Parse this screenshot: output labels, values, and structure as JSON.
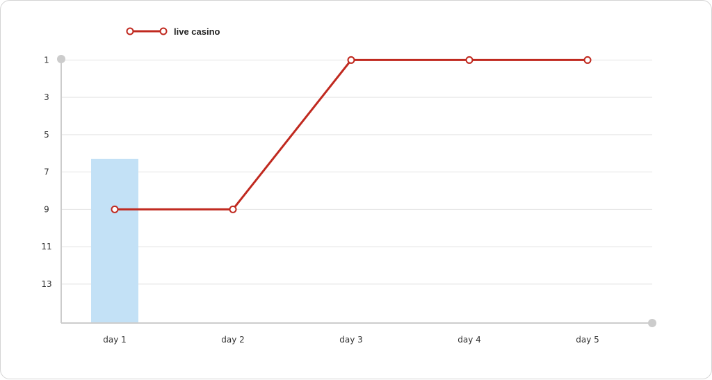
{
  "chart_data": {
    "type": "line",
    "categories": [
      "day 1",
      "day 2",
      "day 3",
      "day 4",
      "day 5"
    ],
    "series": [
      {
        "name": "live casino",
        "values": [
          9,
          9,
          1,
          1,
          1
        ]
      }
    ],
    "bars": [
      6.3,
      null,
      null,
      null,
      null
    ],
    "y_ticks": [
      "1",
      "3",
      "5",
      "7",
      "9",
      "11",
      "13"
    ],
    "ylim": [
      0.5,
      15.5
    ],
    "y_inverted": true,
    "grid": true,
    "legend_position": "top-left",
    "colors": {
      "line": "#c0291f",
      "bar": "#c3e1f6",
      "grid": "#e3e3e3",
      "axis": "#cccccc"
    }
  }
}
